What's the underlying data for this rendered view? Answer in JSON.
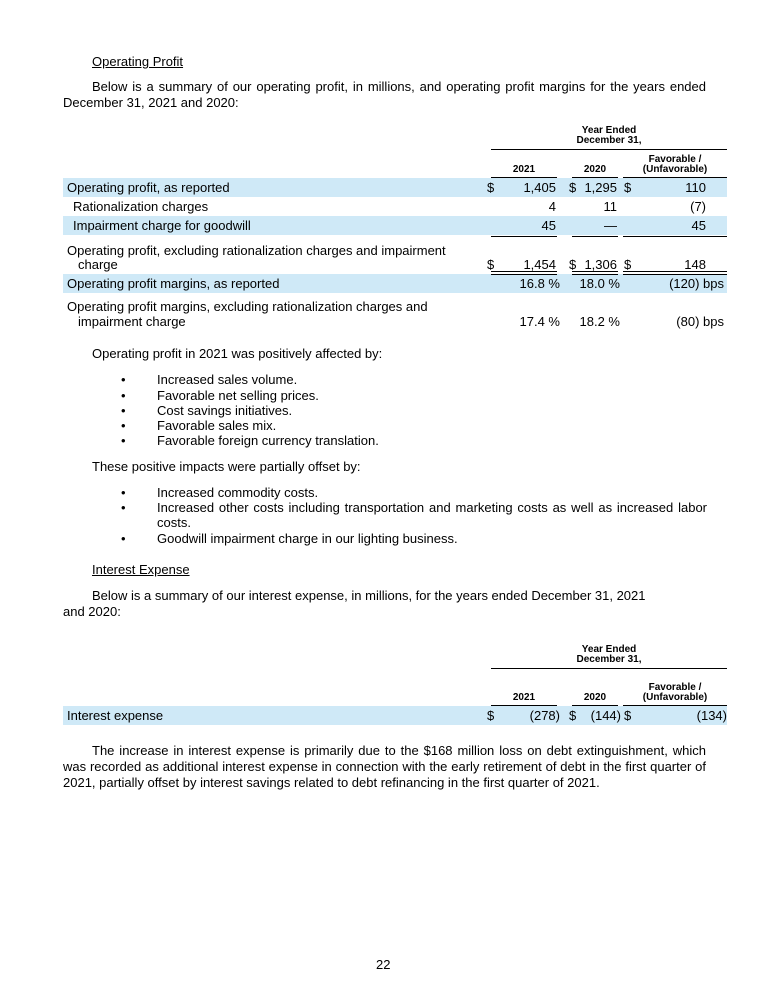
{
  "section1": {
    "heading": "Operating Profit",
    "intro": "Below is a summary of our operating profit, in millions, and operating profit margins for the years ended December 31, 2021 and 2020:"
  },
  "table1": {
    "header_group": [
      "Year Ended",
      "December 31,"
    ],
    "col_2021": "2021",
    "col_2020": "2020",
    "col_fav": [
      "Favorable /",
      "(Unfavorable)"
    ],
    "rows": [
      {
        "label": "Operating profit, as reported",
        "c1": "1,405",
        "c2": "1,295",
        "c3": "110",
        "dollar": "$"
      },
      {
        "label": "Rationalization charges",
        "c1": "4",
        "c2": "11",
        "c3": "(7)"
      },
      {
        "label": "Impairment charge for goodwill",
        "c1": "45",
        "c2": "—",
        "c3": "45"
      },
      {
        "label1": "Operating profit, excluding rationalization charges and impairment",
        "label2": "charge",
        "c1": "1,454",
        "c2": "1,306",
        "c3": "148",
        "dollar": "$"
      },
      {
        "label": "Operating profit margins, as reported",
        "c1": "16.8 %",
        "c2": "18.0 %",
        "c3": "(120) bps"
      },
      {
        "label1": "Operating profit margins, excluding rationalization charges and",
        "label2": "impairment charge",
        "c1": "17.4 %",
        "c2": "18.2 %",
        "c3": "(80) bps"
      }
    ]
  },
  "affected_intro": "Operating profit in 2021 was positively affected by:",
  "bullet": "•",
  "positives": [
    "Increased sales volume.",
    "Favorable net selling prices.",
    "Cost savings initiatives.",
    "Favorable sales mix.",
    "Favorable foreign currency translation."
  ],
  "offset_intro": "These positive impacts were partially offset by:",
  "negatives": [
    "Increased commodity costs.",
    "Increased other costs including transportation and marketing costs as well as increased labor costs.",
    "Goodwill impairment charge in our lighting business."
  ],
  "section2": {
    "heading": "Interest Expense",
    "intro": "Below is a summary of our interest expense, in millions, for the years ended December 31, 2021 and 2020:"
  },
  "table2": {
    "header_group": [
      "Year Ended",
      "December 31,"
    ],
    "col_2021": "2021",
    "col_2020": "2020",
    "col_fav": [
      "Favorable /",
      "(Unfavorable)"
    ],
    "rows": [
      {
        "label": "Interest expense",
        "dollar": "$",
        "c1": "(278)",
        "c2": "(144)",
        "c3": "(134)"
      }
    ]
  },
  "closing": "The increase in interest expense is primarily due to the $168 million loss on debt extinguishment, which was recorded as additional interest expense in connection with the early retirement of debt in the first quarter of 2021, partially offset by interest savings related to debt refinancing in the first quarter of 2021.",
  "page_number": "22"
}
